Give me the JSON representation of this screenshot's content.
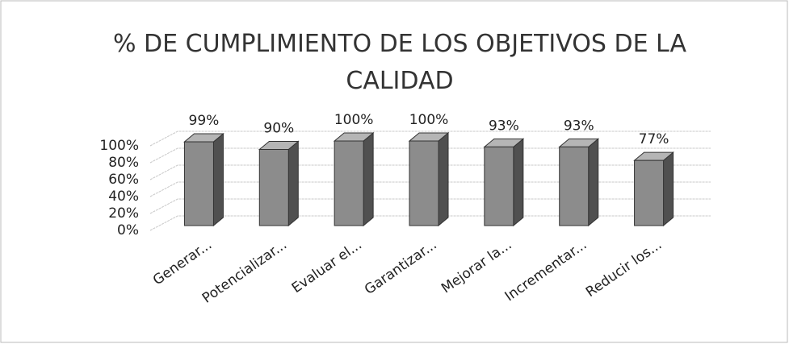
{
  "chart_data": {
    "type": "bar3d",
    "title": "% DE CUMPLIMIENTO DE LOS OBJETIVOS DE LA CALIDAD",
    "categories": [
      "Generar...",
      "Potencializar...",
      "Evaluar el...",
      "Garantizar...",
      "Mejorar la...",
      "Incrementar...",
      "Reducir los..."
    ],
    "values": [
      99,
      90,
      100,
      100,
      93,
      93,
      77
    ],
    "value_labels": [
      "99%",
      "90%",
      "100%",
      "100%",
      "93%",
      "93%",
      "77%"
    ],
    "color": "#8c8c8c",
    "ylim": [
      0,
      100
    ],
    "yticks": [
      {
        "value": 0,
        "label": "0%"
      },
      {
        "value": 20,
        "label": "20%"
      },
      {
        "value": 40,
        "label": "40%"
      },
      {
        "value": 60,
        "label": "60%"
      },
      {
        "value": 80,
        "label": "80%"
      },
      {
        "value": 100,
        "label": "100%"
      }
    ],
    "grid": true
  }
}
